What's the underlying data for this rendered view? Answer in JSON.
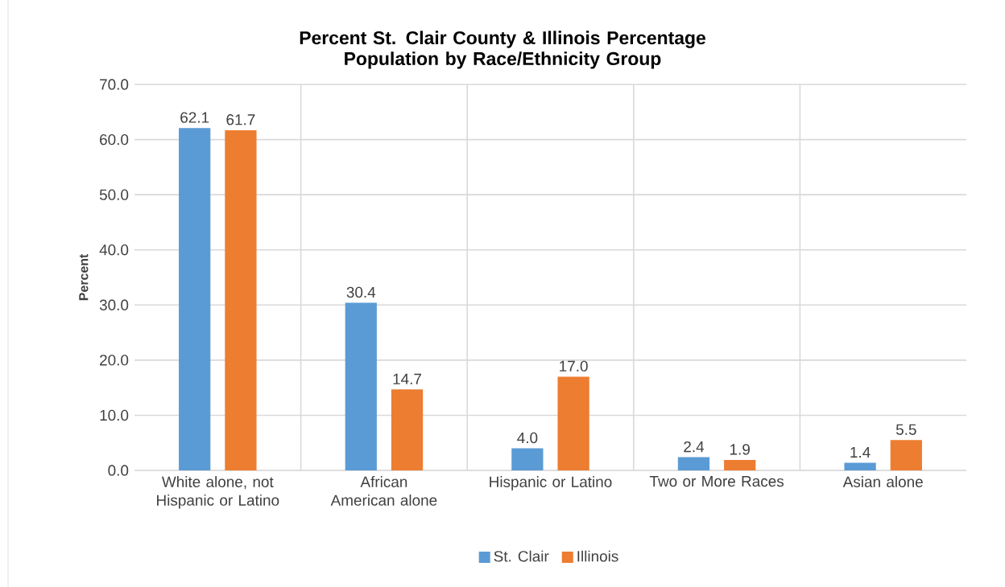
{
  "chart_data": {
    "type": "bar",
    "title": "Percent St. Clair County & Illinois Percentage Population by Race/Ethnicity Group",
    "ylabel": "Percent",
    "categories": [
      "White alone, not Hispanic or Latino",
      "African American alone",
      "Hispanic or Latino",
      "Two or More Races",
      "Asian alone"
    ],
    "series": [
      {
        "name": "St. Clair",
        "color": "#5b9bd5",
        "values": [
          62.1,
          30.4,
          4.0,
          2.4,
          1.4
        ],
        "value_labels": [
          "62.1",
          "30.4",
          "4.0",
          "2.4",
          "1.4"
        ]
      },
      {
        "name": "Illinois",
        "color": "#ed7d31",
        "values": [
          61.7,
          14.7,
          17.0,
          1.9,
          5.5
        ],
        "value_labels": [
          "61.7",
          "14.7",
          "17.0",
          "1.9",
          "5.5"
        ]
      }
    ],
    "ylim": [
      0,
      70
    ],
    "yticks": [
      {
        "value": 0,
        "label": "0.0"
      },
      {
        "value": 10,
        "label": "10.0"
      },
      {
        "value": 20,
        "label": "20.0"
      },
      {
        "value": 30,
        "label": "30.0"
      },
      {
        "value": 40,
        "label": "40.0"
      },
      {
        "value": 50,
        "label": "50.0"
      },
      {
        "value": 60,
        "label": "60.0"
      },
      {
        "value": 70,
        "label": "70.0"
      }
    ],
    "grid": true,
    "legend": "bottom"
  }
}
